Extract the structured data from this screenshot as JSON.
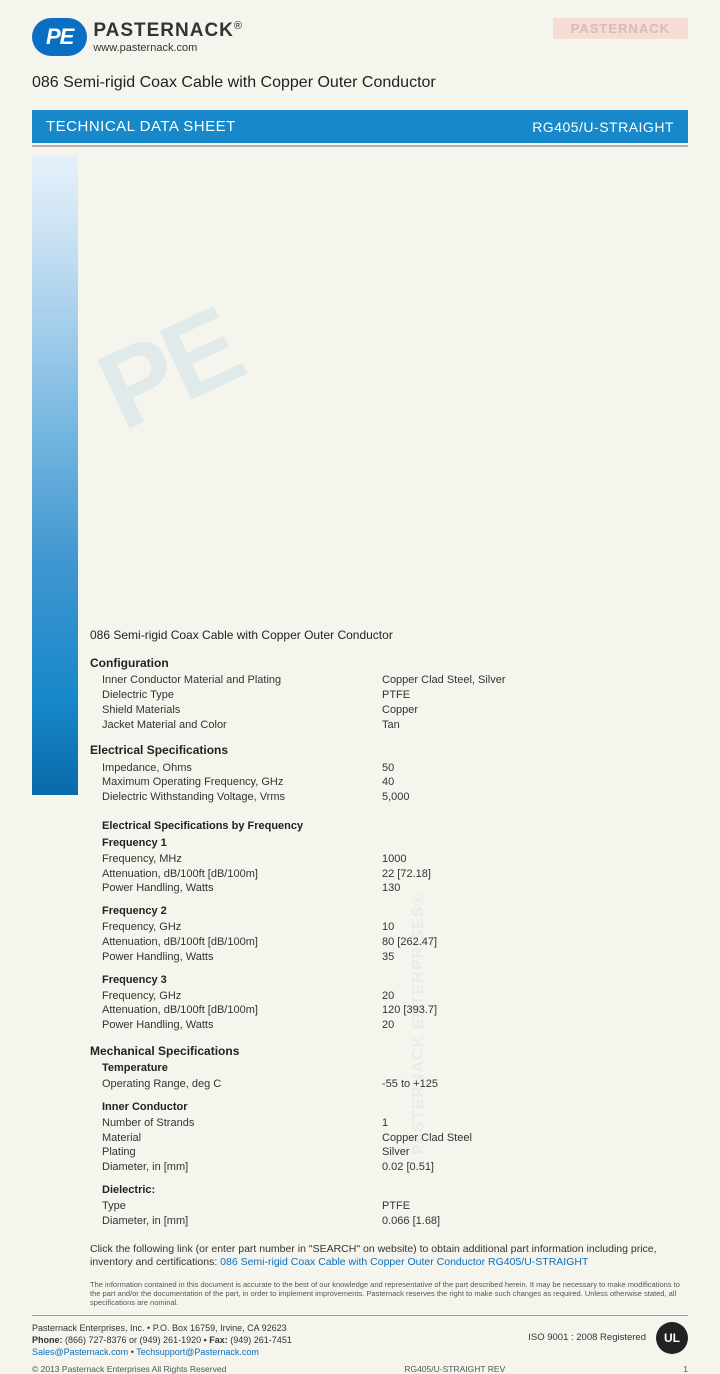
{
  "logo": {
    "pe": "PE",
    "name": "PASTERNACK",
    "reg": "®",
    "url": "www.pasternack.com"
  },
  "wm_small": "PASTERNACK",
  "title": "086 Semi-rigid Coax Cable with Copper Outer Conductor",
  "banner": {
    "left": "TECHNICAL DATA SHEET",
    "right": "RG405/U-STRAIGHT"
  },
  "subtitle": "086 Semi-rigid Coax Cable with Copper Outer Conductor",
  "sections": {
    "config": {
      "head": "Configuration",
      "rows": [
        {
          "l": "Inner Conductor Material and Plating",
          "v": "Copper Clad Steel, Silver"
        },
        {
          "l": "Dielectric Type",
          "v": "PTFE"
        },
        {
          "l": "Shield Materials",
          "v": "Copper"
        },
        {
          "l": "Jacket Material and Color",
          "v": "Tan"
        }
      ]
    },
    "elec": {
      "head": "Electrical Specifications",
      "rows": [
        {
          "l": "Impedance, Ohms",
          "v": "50"
        },
        {
          "l": "Maximum Operating Frequency, GHz",
          "v": "40"
        },
        {
          "l": "Dielectric Withstanding Voltage, Vrms",
          "v": "5,000"
        }
      ]
    },
    "byfreq": {
      "head": "Electrical Specifications by Frequency"
    },
    "f1": {
      "head": "Frequency 1",
      "rows": [
        {
          "l": "Frequency, MHz",
          "v": "1000"
        },
        {
          "l": "Attenuation, dB/100ft [dB/100m]",
          "v": "22 [72.18]"
        },
        {
          "l": "Power Handling, Watts",
          "v": "130"
        }
      ]
    },
    "f2": {
      "head": "Frequency 2",
      "rows": [
        {
          "l": "Frequency, GHz",
          "v": "10"
        },
        {
          "l": "Attenuation, dB/100ft [dB/100m]",
          "v": "80 [262.47]"
        },
        {
          "l": "Power Handling, Watts",
          "v": "35"
        }
      ]
    },
    "f3": {
      "head": "Frequency 3",
      "rows": [
        {
          "l": "Frequency, GHz",
          "v": "20"
        },
        {
          "l": "Attenuation, dB/100ft [dB/100m]",
          "v": "120 [393.7]"
        },
        {
          "l": "Power Handling, Watts",
          "v": "20"
        }
      ]
    },
    "mech": {
      "head": "Mechanical Specifications"
    },
    "temp": {
      "head": "Temperature",
      "rows": [
        {
          "l": "Operating Range, deg C",
          "v": "-55 to +125"
        }
      ]
    },
    "inner": {
      "head": "Inner Conductor",
      "rows": [
        {
          "l": "Number of Strands",
          "v": "1"
        },
        {
          "l": "Material",
          "v": "Copper Clad Steel"
        },
        {
          "l": "Plating",
          "v": "Silver"
        },
        {
          "l": "Diameter, in [mm]",
          "v": "0.02 [0.51]"
        }
      ]
    },
    "diel": {
      "head": "Dielectric:",
      "rows": [
        {
          "l": "Type",
          "v": "PTFE"
        },
        {
          "l": "Diameter, in [mm]",
          "v": "0.066 [1.68]"
        }
      ]
    }
  },
  "link_text": "Click the following link (or enter part number in \"SEARCH\" on website) to obtain additional part information including price, inventory and certifications: ",
  "link_label": "086 Semi-rigid Coax Cable with Copper Outer Conductor RG405/U-STRAIGHT",
  "disclaimer": "The information contained in this document is accurate to the best of our knowledge and representative of the part described herein. It may be necessary to make modifications to the part and/or the documentation of the part, in order to implement improvements. Pasternack reserves the right to make such changes as required. Unless otherwise stated, all specifications are nominal.",
  "footer": {
    "addr": "Pasternack Enterprises, Inc. • P.O. Box 16759, Irvine, CA 92623",
    "phone_lbl": "Phone: ",
    "phone": "(866) 727-8376 or (949) 261-1920",
    "fax_lbl": " • Fax: ",
    "fax": "(949) 261-7451",
    "email1": "Sales@Pasternack.com",
    "sep": " • ",
    "email2": "Techsupport@Pasternack.com",
    "iso": "ISO 9001 : 2008 Registered",
    "ul": "UL"
  },
  "bottom": {
    "copy": "© 2013 Pasternack Enterprises All Rights Reserved",
    "rev": "RG405/U-STRAIGHT  REV",
    "page": "1"
  },
  "wm_bg": "PE",
  "wm_bg2": "PASTERNACK ENTERPRISES®"
}
